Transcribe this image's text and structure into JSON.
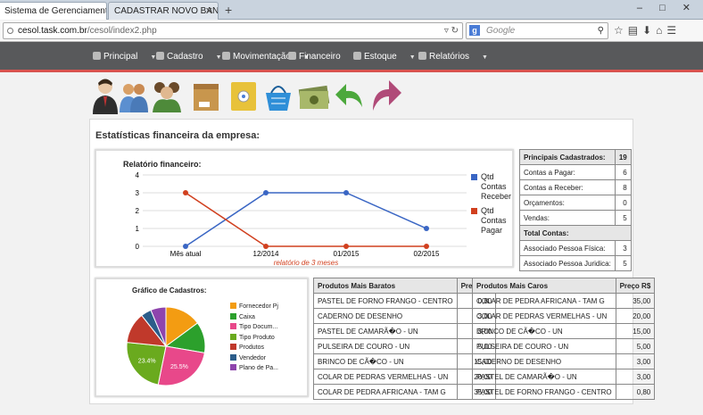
{
  "browser": {
    "tabs": [
      {
        "label": "Sistema de Gerenciamento de ...",
        "active": true
      },
      {
        "label": "CADASTRAR NOVO BANCO DE...",
        "active": false
      }
    ],
    "new_tab": "+",
    "url_host": "cesol.task.com.br",
    "url_path": "/cesol/index2.php",
    "search_placeholder": "Google",
    "window_controls": "– □ ✕"
  },
  "nav": {
    "items": [
      {
        "label": "Principal",
        "icon": "home-icon"
      },
      {
        "label": "Cadastro",
        "icon": "folder-icon"
      },
      {
        "label": "Movimentação",
        "icon": "refresh-icon"
      },
      {
        "label": "Financeiro",
        "icon": "money-icon"
      },
      {
        "label": "Estoque",
        "icon": "tag-icon"
      },
      {
        "label": "Relatórios",
        "icon": "report-icon"
      }
    ]
  },
  "shortcuts": [
    {
      "icon": "businessman-icon",
      "color": "#3a3a3a"
    },
    {
      "icon": "users-icon",
      "color": "#d9a066"
    },
    {
      "icon": "group-icon",
      "color": "#4e8a3a"
    },
    {
      "icon": "box-icon",
      "color": "#c8964d"
    },
    {
      "icon": "safe-icon",
      "color": "#e8c23a"
    },
    {
      "icon": "basket-icon",
      "color": "#2f8fd8"
    },
    {
      "icon": "cash-icon",
      "color": "#7a8b4a"
    },
    {
      "icon": "undo-arrow-icon",
      "color": "#4ca83c"
    },
    {
      "icon": "redo-arrow-icon",
      "color": "#b04a78"
    }
  ],
  "panel_title": "Estatísticas financeira da empresa:",
  "chart_data": [
    {
      "type": "line",
      "title": "Relatório financeiro:",
      "categories": [
        "Mês atual",
        "12/2014",
        "01/2015",
        "02/2015"
      ],
      "series": [
        {
          "name": "Qtd Contas Receber",
          "values": [
            0,
            3,
            3,
            1
          ],
          "color": "#3a66c4"
        },
        {
          "name": "Qtd Contas Pagar",
          "values": [
            3,
            0,
            0,
            0
          ],
          "color": "#d1401f"
        }
      ],
      "ylim": [
        0,
        4
      ],
      "yticks": [
        0,
        1,
        2,
        3,
        4
      ],
      "xlabel": "relatório de 3 meses",
      "ylabel": "",
      "grid": true,
      "legend": "right"
    },
    {
      "type": "pie",
      "title": "Gráfico de Cadastros:",
      "slices": [
        {
          "label": "Fornecedor Pj",
          "value": 14.9,
          "color": "#f39c12",
          "shown": ""
        },
        {
          "label": "Caixa",
          "value": 12.8,
          "color": "#2ca02c",
          "shown": ""
        },
        {
          "label": "Tipo Docum...",
          "value": 25.5,
          "color": "#e8488a",
          "shown": "25.5%"
        },
        {
          "label": "Tipo Produto",
          "value": 23.4,
          "color": "#6aaa1e",
          "shown": "23.4%"
        },
        {
          "label": "Produtos",
          "value": 12.8,
          "color": "#c0392b",
          "shown": ""
        },
        {
          "label": "Vendedor",
          "value": 4.3,
          "color": "#2c5d8a",
          "shown": ""
        },
        {
          "label": "Plano de Pa...",
          "value": 6.3,
          "color": "#8e44ad",
          "shown": ""
        }
      ],
      "legend": "right"
    }
  ],
  "summary": {
    "header": {
      "label": "Principais Cadastrados:",
      "value": "19"
    },
    "rows": [
      {
        "label": "Contas a Pagar:",
        "value": "6"
      },
      {
        "label": "Contas a Receber:",
        "value": "8"
      },
      {
        "label": "Orçamentos:",
        "value": "0"
      },
      {
        "label": "Vendas:",
        "value": "5"
      }
    ],
    "header2": "Total Contas:",
    "rows2": [
      {
        "label": "Associado Pessoa Física:",
        "value": "3"
      },
      {
        "label": "Associado Pessoa Juridica:",
        "value": "5"
      }
    ]
  },
  "cheap": {
    "headers": [
      "Produtos Mais Baratos",
      "Preço R$"
    ],
    "rows": [
      [
        "PASTEL DE FORNO FRANGO - CENTRO",
        "0,80"
      ],
      [
        "CADERNO DE DESENHO",
        "3,00"
      ],
      [
        "PASTEL DE CAMARÃ�O - UN",
        "3,00"
      ],
      [
        "PULSEIRA DE COURO - UN",
        "5,00"
      ],
      [
        "BRINCO DE CÃ�CO - UN",
        "15,00"
      ],
      [
        "COLAR DE PEDRAS VERMELHAS - UN",
        "20,00"
      ],
      [
        "COLAR DE PEDRA AFRICANA - TAM G",
        "35,00"
      ]
    ]
  },
  "expensive": {
    "headers": [
      "Produtos Mais Caros",
      "Preço R$"
    ],
    "rows": [
      [
        "COLAR DE PEDRA AFRICANA - TAM G",
        "35,00"
      ],
      [
        "COLAR DE PEDRAS VERMELHAS - UN",
        "20,00"
      ],
      [
        "BRINCO DE CÃ�CO - UN",
        "15,00"
      ],
      [
        "PULSEIRA DE COURO - UN",
        "5,00"
      ],
      [
        "CADERNO DE DESENHO",
        "3,00"
      ],
      [
        "PASTEL DE CAMARÃ�O - UN",
        "3,00"
      ],
      [
        "PASTEL DE FORNO FRANGO - CENTRO",
        "0,80"
      ]
    ]
  }
}
